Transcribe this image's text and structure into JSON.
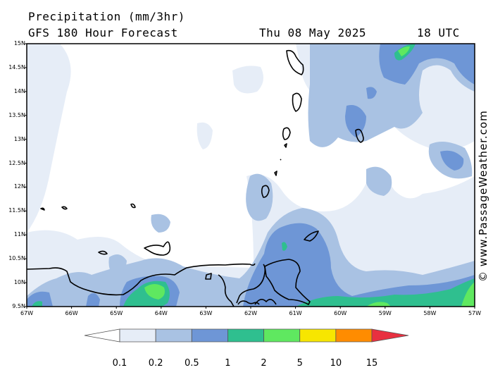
{
  "header": {
    "variable": "Precipitation (mm/3hr)",
    "model": "GFS 180 Hour Forecast",
    "date": "Thu 08 May 2025",
    "time": "18 UTC"
  },
  "map": {
    "lat_range": [
      9.5,
      15
    ],
    "lon_range": [
      -67,
      -57
    ],
    "lat_labels": [
      "15N",
      "14.5N",
      "14N",
      "13.5N",
      "13N",
      "12.5N",
      "12N",
      "11.5N",
      "11N",
      "10.5N",
      "10N",
      "9.5N"
    ],
    "lon_labels": [
      "67W",
      "66W",
      "65W",
      "64W",
      "63W",
      "62W",
      "61W",
      "60W",
      "59W",
      "58W",
      "57W"
    ],
    "precip_colors": [
      "#e6edf7",
      "#a9c2e3",
      "#6e96d6",
      "#2fbf8f",
      "#5fe860",
      "#f7e600",
      "#ff8c00",
      "#e83040"
    ]
  },
  "colorbar": {
    "labels": [
      "0.1",
      "0.2",
      "0.5",
      "1",
      "2",
      "5",
      "10",
      "15"
    ],
    "colors": [
      "#ffffff",
      "#e6edf7",
      "#a9c2e3",
      "#6e96d6",
      "#2fbf8f",
      "#5fe860",
      "#f7e600",
      "#ff8c00",
      "#e83040"
    ]
  },
  "watermark": "© www.PassageWeather.com"
}
